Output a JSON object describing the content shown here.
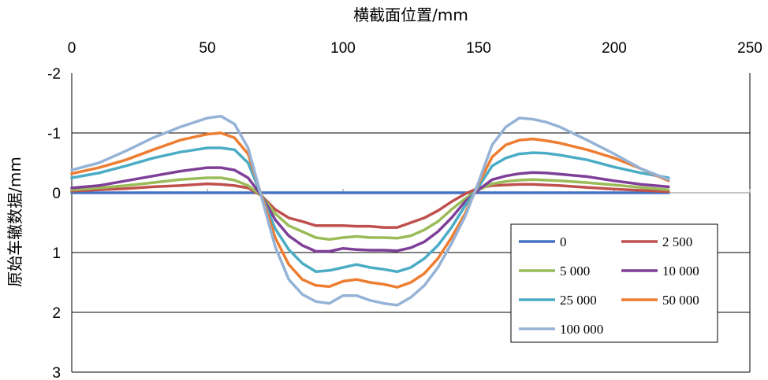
{
  "chart_data": {
    "type": "line",
    "title": "",
    "xlabel": "横截面位置/mm",
    "ylabel": "原始车辙数据/mm",
    "x_axis_position": "top",
    "y_reversed": true,
    "xlim": [
      0,
      250
    ],
    "ylim": [
      -2,
      3
    ],
    "x_ticks": [
      "0",
      "50",
      "100",
      "150",
      "200",
      "250"
    ],
    "y_ticks": [
      "-2",
      "-1",
      "0",
      "1",
      "2",
      "3"
    ],
    "grid": "horizontal",
    "legend_position": "bottom-right",
    "x": [
      0,
      10,
      20,
      30,
      40,
      50,
      55,
      60,
      65,
      70,
      75,
      80,
      85,
      90,
      95,
      100,
      105,
      110,
      115,
      120,
      125,
      130,
      135,
      140,
      145,
      150,
      155,
      160,
      165,
      170,
      175,
      180,
      190,
      200,
      210,
      220
    ],
    "series": [
      {
        "name": "0",
        "color": "#4472C4",
        "values": [
          0,
          0,
          0,
          0,
          0,
          0,
          0,
          0,
          0,
          0,
          0,
          0,
          0,
          0,
          0,
          0,
          0,
          0,
          0,
          0,
          0,
          0,
          0,
          0,
          0,
          0,
          0,
          0,
          0,
          0,
          0,
          0,
          0,
          0,
          0,
          0
        ]
      },
      {
        "name": "2 500",
        "color": "#C0504D",
        "values": [
          -0.03,
          -0.05,
          -0.07,
          -0.1,
          -0.12,
          -0.15,
          -0.14,
          -0.12,
          -0.08,
          0.05,
          0.28,
          0.42,
          0.48,
          0.55,
          0.55,
          0.55,
          0.56,
          0.56,
          0.58,
          0.58,
          0.5,
          0.42,
          0.3,
          0.15,
          0.02,
          -0.08,
          -0.12,
          -0.13,
          -0.14,
          -0.14,
          -0.13,
          -0.12,
          -0.09,
          -0.06,
          -0.04,
          -0.02
        ]
      },
      {
        "name": "5 000",
        "color": "#9BBB59",
        "values": [
          -0.05,
          -0.08,
          -0.12,
          -0.17,
          -0.22,
          -0.25,
          -0.25,
          -0.21,
          -0.12,
          0.05,
          0.35,
          0.55,
          0.65,
          0.75,
          0.78,
          0.75,
          0.73,
          0.75,
          0.75,
          0.76,
          0.72,
          0.62,
          0.48,
          0.28,
          0.1,
          -0.05,
          -0.15,
          -0.19,
          -0.21,
          -0.22,
          -0.21,
          -0.2,
          -0.17,
          -0.13,
          -0.09,
          -0.05
        ]
      },
      {
        "name": "10 000",
        "color": "#7F3F98",
        "values": [
          -0.08,
          -0.12,
          -0.2,
          -0.28,
          -0.36,
          -0.42,
          -0.42,
          -0.38,
          -0.25,
          0.05,
          0.45,
          0.72,
          0.88,
          0.98,
          0.98,
          0.93,
          0.95,
          0.96,
          0.96,
          0.97,
          0.92,
          0.82,
          0.65,
          0.42,
          0.15,
          -0.05,
          -0.22,
          -0.28,
          -0.32,
          -0.34,
          -0.33,
          -0.31,
          -0.27,
          -0.2,
          -0.14,
          -0.1
        ]
      },
      {
        "name": "25 000",
        "color": "#4BACC6",
        "values": [
          -0.25,
          -0.33,
          -0.45,
          -0.58,
          -0.68,
          -0.75,
          -0.75,
          -0.72,
          -0.5,
          0.05,
          0.6,
          0.95,
          1.18,
          1.32,
          1.3,
          1.25,
          1.2,
          1.25,
          1.28,
          1.32,
          1.25,
          1.1,
          0.88,
          0.58,
          0.22,
          -0.1,
          -0.45,
          -0.58,
          -0.65,
          -0.67,
          -0.66,
          -0.63,
          -0.55,
          -0.43,
          -0.33,
          -0.25
        ]
      },
      {
        "name": "50 000",
        "color": "#ED7D31",
        "values": [
          -0.32,
          -0.42,
          -0.55,
          -0.72,
          -0.88,
          -0.98,
          -1.0,
          -0.92,
          -0.65,
          0.05,
          0.75,
          1.2,
          1.45,
          1.55,
          1.57,
          1.48,
          1.45,
          1.5,
          1.53,
          1.58,
          1.5,
          1.35,
          1.1,
          0.75,
          0.35,
          -0.15,
          -0.6,
          -0.8,
          -0.88,
          -0.9,
          -0.87,
          -0.83,
          -0.72,
          -0.58,
          -0.4,
          -0.2
        ]
      },
      {
        "name": "100 000",
        "color": "#95B3D7",
        "values": [
          -0.38,
          -0.5,
          -0.7,
          -0.92,
          -1.1,
          -1.25,
          -1.28,
          -1.15,
          -0.75,
          0.08,
          0.9,
          1.45,
          1.7,
          1.82,
          1.85,
          1.72,
          1.72,
          1.8,
          1.85,
          1.88,
          1.75,
          1.55,
          1.25,
          0.85,
          0.4,
          -0.18,
          -0.8,
          -1.1,
          -1.25,
          -1.23,
          -1.18,
          -1.1,
          -0.88,
          -0.65,
          -0.4,
          -0.22
        ]
      }
    ]
  }
}
